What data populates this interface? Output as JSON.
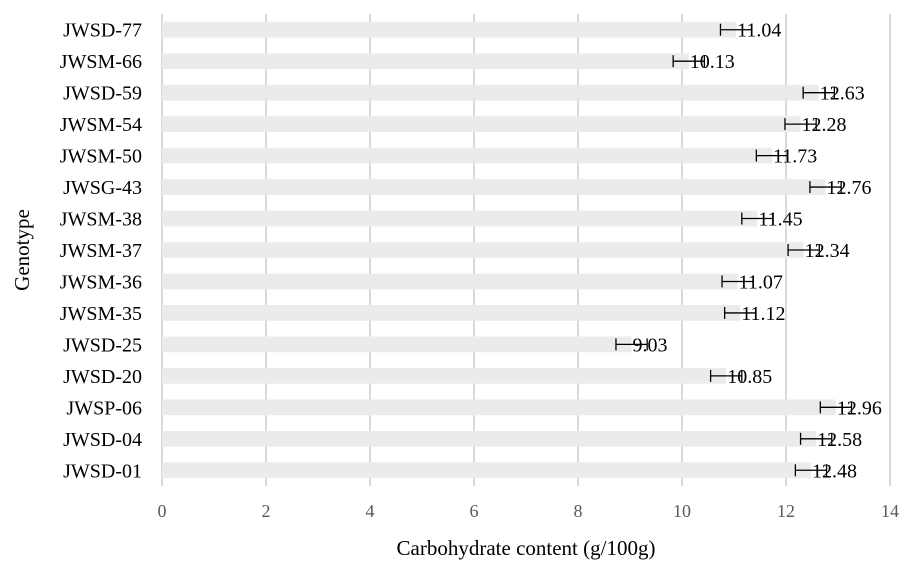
{
  "chart_data": {
    "type": "bar",
    "orientation": "horizontal",
    "categories": [
      "JWSD-77",
      "JWSM-66",
      "JWSD-59",
      "JWSM-54",
      "JWSM-50",
      "JWSG-43",
      "JWSM-38",
      "JWSM-37",
      "JWSM-36",
      "JWSM-35",
      "JWSD-25",
      "JWSD-20",
      "JWSP-06",
      "JWSD-04",
      "JWSD-01"
    ],
    "values": [
      11.04,
      10.13,
      12.63,
      12.28,
      11.73,
      12.76,
      11.45,
      12.34,
      11.07,
      11.12,
      9.03,
      10.85,
      12.96,
      12.58,
      12.48
    ],
    "value_labels": [
      "11.04",
      "10.13",
      "12.63",
      "12.28",
      "11.73",
      "12.76",
      "11.45",
      "12.34",
      "11.07",
      "11.12",
      "9.03",
      "10.85",
      "12.96",
      "12.58",
      "12.48"
    ],
    "error": [
      0.3,
      0.3,
      0.3,
      0.3,
      0.3,
      0.3,
      0.3,
      0.3,
      0.3,
      0.3,
      0.3,
      0.3,
      0.3,
      0.3,
      0.3
    ],
    "xlabel": "Carbohydrate content (g/100g)",
    "ylabel": "Genotype",
    "xlim": [
      0,
      14
    ],
    "xticks": [
      "0",
      "2",
      "4",
      "6",
      "8",
      "10",
      "12",
      "14"
    ],
    "grid": "vertical",
    "legend": "none",
    "colors": {
      "bar": "#ebebeb",
      "grid": "#d9d9d9",
      "error_bar": "#000000"
    }
  }
}
